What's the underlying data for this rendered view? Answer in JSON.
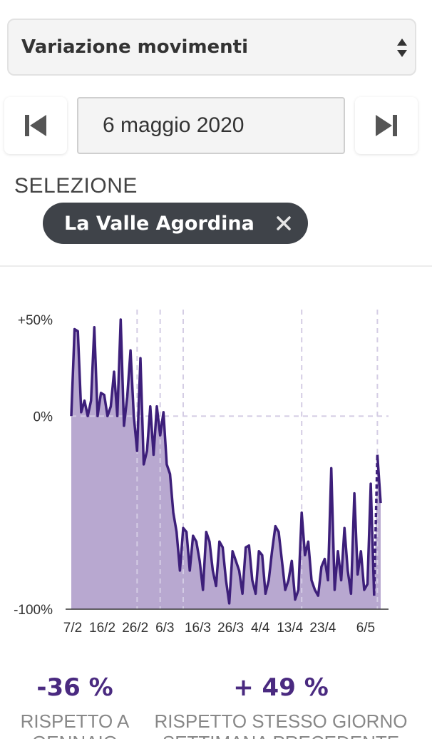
{
  "metric_select": {
    "value": "Variazione movimenti"
  },
  "date_nav": {
    "date": "6 maggio 2020"
  },
  "selection": {
    "label": "SELEZIONE",
    "chip_label": "La Valle Agordina"
  },
  "colors": {
    "line": "#3d1f7a",
    "area": "#b8a8d0",
    "reference": "#d4cce4",
    "stat": "#4a2a80"
  },
  "chart_data": {
    "type": "area",
    "y_ticks": [
      "+50%",
      "0%",
      "-100%"
    ],
    "ylim": [
      -100,
      50
    ],
    "x_ticks": [
      "7/2",
      "16/2",
      "26/2",
      "6/3",
      "16/3",
      "26/3",
      "4/4",
      "13/4",
      "23/4",
      "6/5"
    ],
    "x_tick_days": [
      0,
      9,
      19,
      28,
      38,
      48,
      57,
      66,
      76,
      89
    ],
    "vertical_reference_days": [
      20,
      27,
      34,
      70
    ],
    "values": [
      0,
      45,
      44,
      2,
      8,
      0,
      8,
      46,
      0,
      12,
      11,
      0,
      5,
      23,
      0,
      50,
      -5,
      10,
      34,
      0,
      -18,
      30,
      -25,
      -18,
      5,
      -20,
      5,
      -10,
      2,
      -25,
      -30,
      -50,
      -60,
      -80,
      -58,
      -60,
      -80,
      -62,
      -65,
      -75,
      -90,
      -60,
      -65,
      -80,
      -88,
      -65,
      -68,
      -85,
      -97,
      -70,
      -75,
      -80,
      -92,
      -68,
      -67,
      -85,
      -92,
      -70,
      -72,
      -92,
      -85,
      -70,
      -57,
      -60,
      -75,
      -90,
      -85,
      -75,
      -95,
      -90,
      -50,
      -72,
      -65,
      -85,
      -90,
      -93,
      -78,
      -74,
      -85,
      -27,
      -90,
      -70,
      -85,
      -58,
      -80,
      -92,
      -40,
      -82,
      -70,
      -90,
      -87,
      -35,
      -93,
      -20,
      -45
    ]
  },
  "stats": [
    {
      "value": "-36 %",
      "desc_line1": "RISPETTO A",
      "desc_line2": "GENNAIO"
    },
    {
      "value": "+ 49 %",
      "desc_line1": "RISPETTO STESSO GIORNO",
      "desc_line2": "SETTIMANA PRECEDENTE"
    }
  ]
}
